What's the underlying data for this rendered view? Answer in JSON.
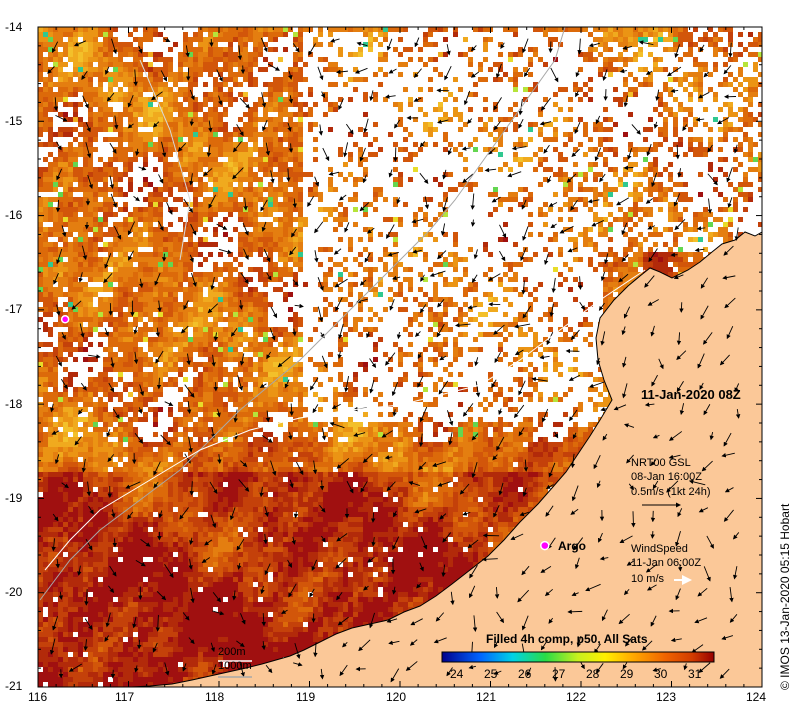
{
  "map": {
    "title_date": "11-Jan-2020 08Z",
    "x_ticks": [
      "116",
      "117",
      "118",
      "119",
      "120",
      "121",
      "122",
      "123",
      "124"
    ],
    "y_ticks": [
      "-14",
      "-15",
      "-16",
      "-17",
      "-18",
      "-19",
      "-20",
      "-21"
    ],
    "lon_range": [
      116,
      124
    ],
    "lat_range": [
      -21,
      -14
    ],
    "argo": {
      "label": "Argo",
      "lon": 121.6,
      "lat": -19.5
    },
    "argo_extra": {
      "lon": 116.3,
      "lat": -17.1
    },
    "current_legend": {
      "line1": "NRT00 GSL",
      "line2": "08-Jan 16:00Z",
      "line3": "0.5m/s (1kt 24h)"
    },
    "wind_legend": {
      "line1": "WindSpeed",
      "line2": "11-Jan 06:00Z",
      "line3": "10 m/s"
    },
    "depth_legend": {
      "shallow": "200m",
      "deep": "1000m"
    },
    "colorbar": {
      "title": "Filled 4h comp, p50, All Sats",
      "labels": [
        "24",
        "25",
        "26",
        "27",
        "28",
        "29",
        "30",
        "31"
      ],
      "range": [
        23.5,
        31.5
      ]
    },
    "credit": "IMOS 13-Jan-2020 05:15 Hobart",
    "colors": {
      "land": "#fbc898",
      "nodata": "#ffffff",
      "coast": "#000000",
      "isobath": "#a8a8a8"
    }
  }
}
